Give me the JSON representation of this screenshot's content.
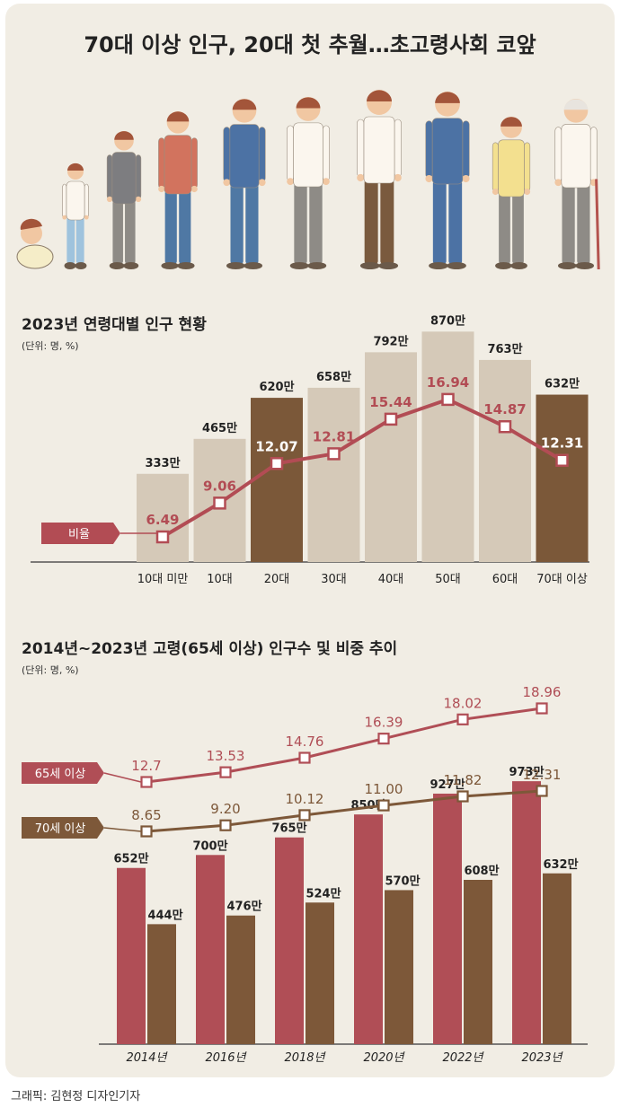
{
  "title": "70대 이상 인구, 20대 첫 추월…초고령사회 코앞",
  "credit": "그래픽: 김현정 디자인기자",
  "chart_data": [
    {
      "type": "bar",
      "title": "2023년 연령대별 인구 현황",
      "unit_note": "(단위: 명, %)",
      "categories": [
        "10대 미만",
        "10대",
        "20대",
        "30대",
        "40대",
        "50대",
        "60대",
        "70대 이상"
      ],
      "values": [
        333,
        465,
        620,
        658,
        792,
        870,
        763,
        632
      ],
      "value_labels": [
        "333만",
        "465만",
        "620만",
        "658만",
        "792만",
        "870만",
        "763만",
        "632만"
      ],
      "highlighted": [
        "20대",
        "70대 이상"
      ],
      "ratio_label": "비율",
      "ratios": [
        6.49,
        9.06,
        12.07,
        12.81,
        15.44,
        16.94,
        14.87,
        12.31
      ],
      "ratio_labels": [
        "6.49",
        "9.06",
        "12.07",
        "12.81",
        "15.44",
        "16.94",
        "14.87",
        "12.31"
      ],
      "colors": {
        "bar": "#d5c9b8",
        "highlight": "#7b5839",
        "line": "#b24c54"
      }
    },
    {
      "type": "bar",
      "title": "2014년~2023년 고령(65세 이상) 인구수 및 비중 추이",
      "unit_note": "(단위: 명, %)",
      "categories": [
        "2014년",
        "2016년",
        "2018년",
        "2020년",
        "2022년",
        "2023년"
      ],
      "series": [
        {
          "name": "65세 이상",
          "values": [
            652,
            700,
            765,
            850,
            927,
            973
          ],
          "value_labels": [
            "652만",
            "700만",
            "765만",
            "850만",
            "927만",
            "973만"
          ],
          "ratios": [
            12.7,
            13.53,
            14.76,
            16.39,
            18.02,
            18.96
          ],
          "ratio_labels": [
            "12.7",
            "13.53",
            "14.76",
            "16.39",
            "18.02",
            "18.96"
          ],
          "color": "#b04e56"
        },
        {
          "name": "70세 이상",
          "values": [
            444,
            476,
            524,
            570,
            608,
            632
          ],
          "value_labels": [
            "444만",
            "476만",
            "524만",
            "570만",
            "608만",
            "632만"
          ],
          "ratios": [
            8.65,
            9.2,
            10.12,
            11.0,
            11.82,
            12.31
          ],
          "ratio_labels": [
            "8.65",
            "9.20",
            "10.12",
            "11.00",
            "11.82",
            "12.31"
          ],
          "color": "#7d5839"
        }
      ]
    }
  ],
  "people_colors": {
    "skin": "#f1c7a2",
    "hair": "#a3553a",
    "shirt_white": "#fbf6ee",
    "pants_gray": "#8e8b86",
    "pants_blue": "#4f78a4",
    "pants_brown": "#7a5a3e",
    "jacket_blue": "#4c72a4",
    "jacket_gray": "#7d7d80",
    "sweater_yellow": "#f3e08f",
    "hoodie_red": "#d2735e"
  }
}
